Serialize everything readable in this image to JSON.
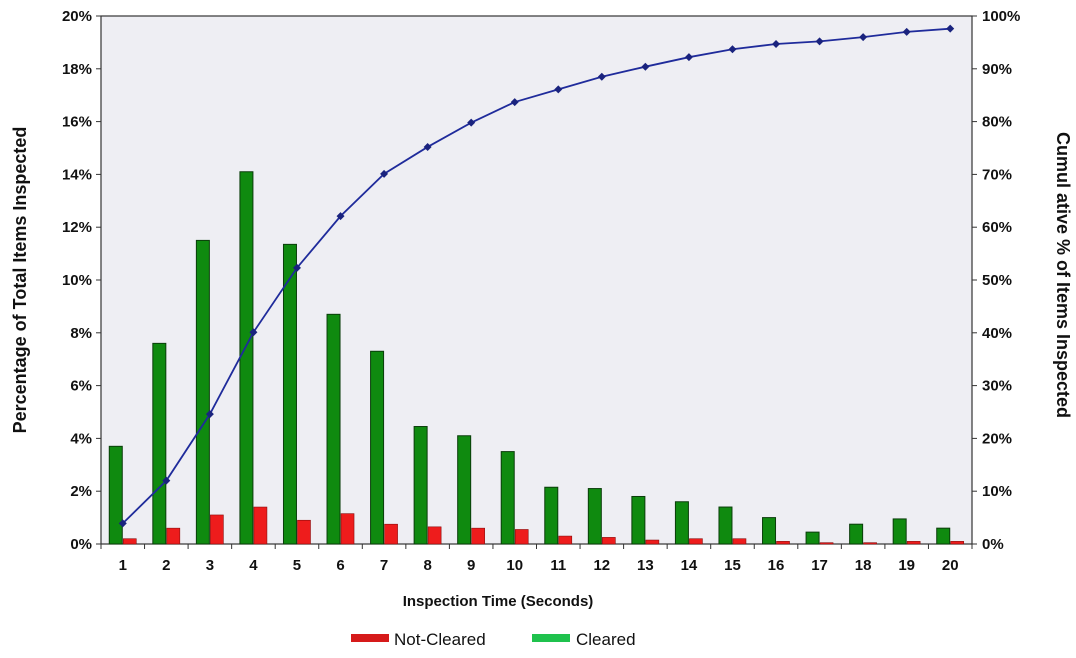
{
  "chart_data": {
    "type": "bar",
    "xlabel": "Inspection Time (Seconds)",
    "ylabel": "Percentage of Total Items Inspected",
    "y2label": "Cumul ative % of Items Inspected",
    "categories": [
      "1",
      "2",
      "3",
      "4",
      "5",
      "6",
      "7",
      "8",
      "9",
      "10",
      "11",
      "12",
      "13",
      "14",
      "15",
      "16",
      "17",
      "18",
      "19",
      "20"
    ],
    "ylim": [
      0,
      20
    ],
    "y2lim": [
      0,
      100
    ],
    "yticks": [
      "0%",
      "2%",
      "4%",
      "6%",
      "8%",
      "10%",
      "12%",
      "14%",
      "16%",
      "18%",
      "20%"
    ],
    "y2ticks": [
      "0%",
      "10%",
      "20%",
      "30%",
      "40%",
      "50%",
      "60%",
      "70%",
      "80%",
      "90%",
      "100%"
    ],
    "grid": false,
    "legend_position": "bottom",
    "series": [
      {
        "name": "Cleared",
        "axis": "left",
        "kind": "bar",
        "color": "#0f8a0f",
        "values": [
          3.7,
          7.6,
          11.5,
          14.1,
          11.35,
          8.7,
          7.3,
          4.45,
          4.1,
          3.5,
          2.15,
          2.1,
          1.8,
          1.6,
          1.4,
          1.0,
          0.45,
          0.75,
          0.95,
          0.6
        ]
      },
      {
        "name": "Not-Cleared",
        "axis": "left",
        "kind": "bar",
        "color": "#ee1c1c",
        "values": [
          0.2,
          0.6,
          1.1,
          1.4,
          0.9,
          1.15,
          0.75,
          0.65,
          0.6,
          0.55,
          0.3,
          0.25,
          0.15,
          0.2,
          0.2,
          0.1,
          0.05,
          0.05,
          0.1,
          0.1
        ]
      },
      {
        "name": "Cumulative",
        "axis": "right",
        "kind": "line",
        "color": "#1f2b9b",
        "values": [
          3.9,
          12.0,
          24.6,
          40.1,
          52.3,
          62.1,
          70.1,
          75.2,
          79.8,
          83.7,
          86.1,
          88.5,
          90.4,
          92.2,
          93.7,
          94.7,
          95.2,
          96.0,
          97.0,
          97.6
        ]
      }
    ],
    "legend": [
      {
        "label": "Not-Cleared",
        "color": "#d61a1a"
      },
      {
        "label": "Cleared",
        "color": "#1fc24d"
      }
    ]
  }
}
